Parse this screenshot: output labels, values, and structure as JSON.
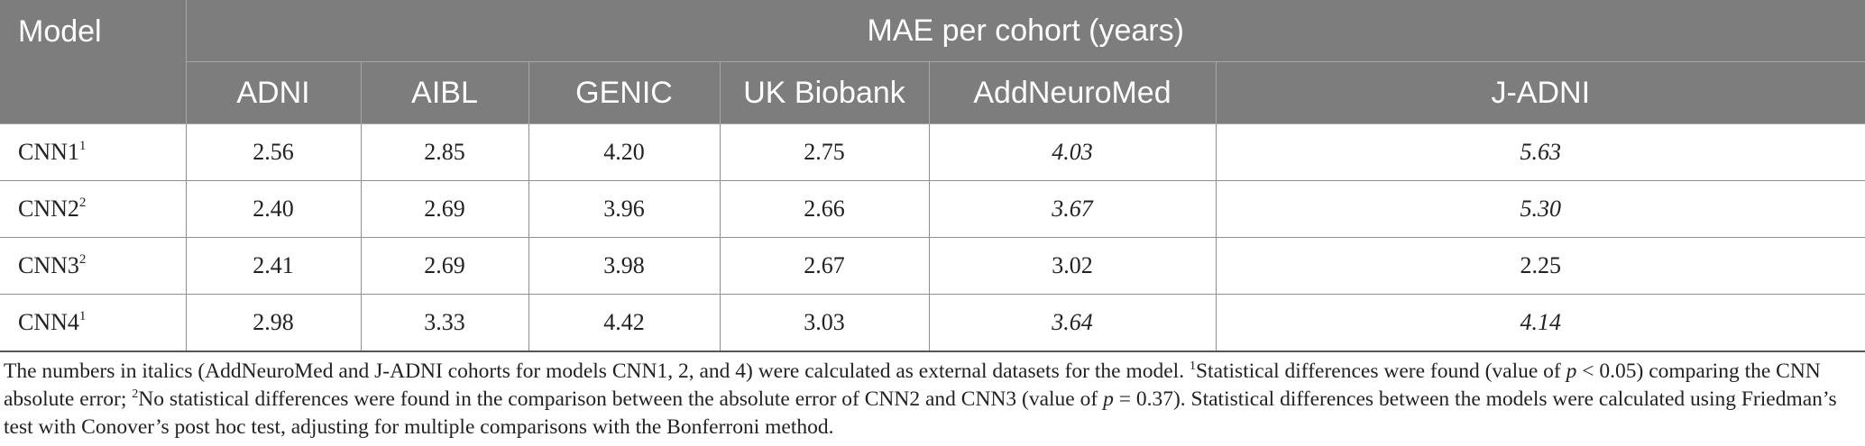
{
  "table": {
    "model_header": "Model",
    "group_header": "MAE per cohort (years)",
    "columns": [
      "ADNI",
      "AIBL",
      "GENIC",
      "UK Biobank",
      "AddNeuroMed",
      "J-ADNI"
    ],
    "rows": [
      {
        "model": "CNN1",
        "sup": "1",
        "values": [
          "2.56",
          "2.85",
          "4.20",
          "2.75",
          "4.03",
          "5.63"
        ],
        "italic": [
          false,
          false,
          false,
          false,
          true,
          true
        ]
      },
      {
        "model": "CNN2",
        "sup": "2",
        "values": [
          "2.40",
          "2.69",
          "3.96",
          "2.66",
          "3.67",
          "5.30"
        ],
        "italic": [
          false,
          false,
          false,
          false,
          true,
          true
        ]
      },
      {
        "model": "CNN3",
        "sup": "2",
        "values": [
          "2.41",
          "2.69",
          "3.98",
          "2.67",
          "3.02",
          "2.25"
        ],
        "italic": [
          false,
          false,
          false,
          false,
          false,
          false
        ]
      },
      {
        "model": "CNN4",
        "sup": "1",
        "values": [
          "2.98",
          "3.33",
          "4.42",
          "3.03",
          "3.64",
          "4.14"
        ],
        "italic": [
          false,
          false,
          false,
          false,
          true,
          true
        ]
      }
    ]
  },
  "footnote": {
    "part1": "The numbers in italics (AddNeuroMed and J-ADNI cohorts for models CNN1, 2, and 4) were calculated as external datasets for the model. ",
    "sup1": "1",
    "part2": "Statistical differences were found (value of ",
    "p1": "p",
    "part3": " < 0.05) comparing the CNN absolute error; ",
    "sup2": "2",
    "part4": "No statistical differences were found in the comparison between the absolute error of CNN2 and CNN3 (value of ",
    "p2": "p",
    "part5": " = 0.37). Statistical differences between the models were calculated using Friedman’s test with Conover’s post hoc test, adjusting for multiple comparisons with the Bonferroni method."
  }
}
